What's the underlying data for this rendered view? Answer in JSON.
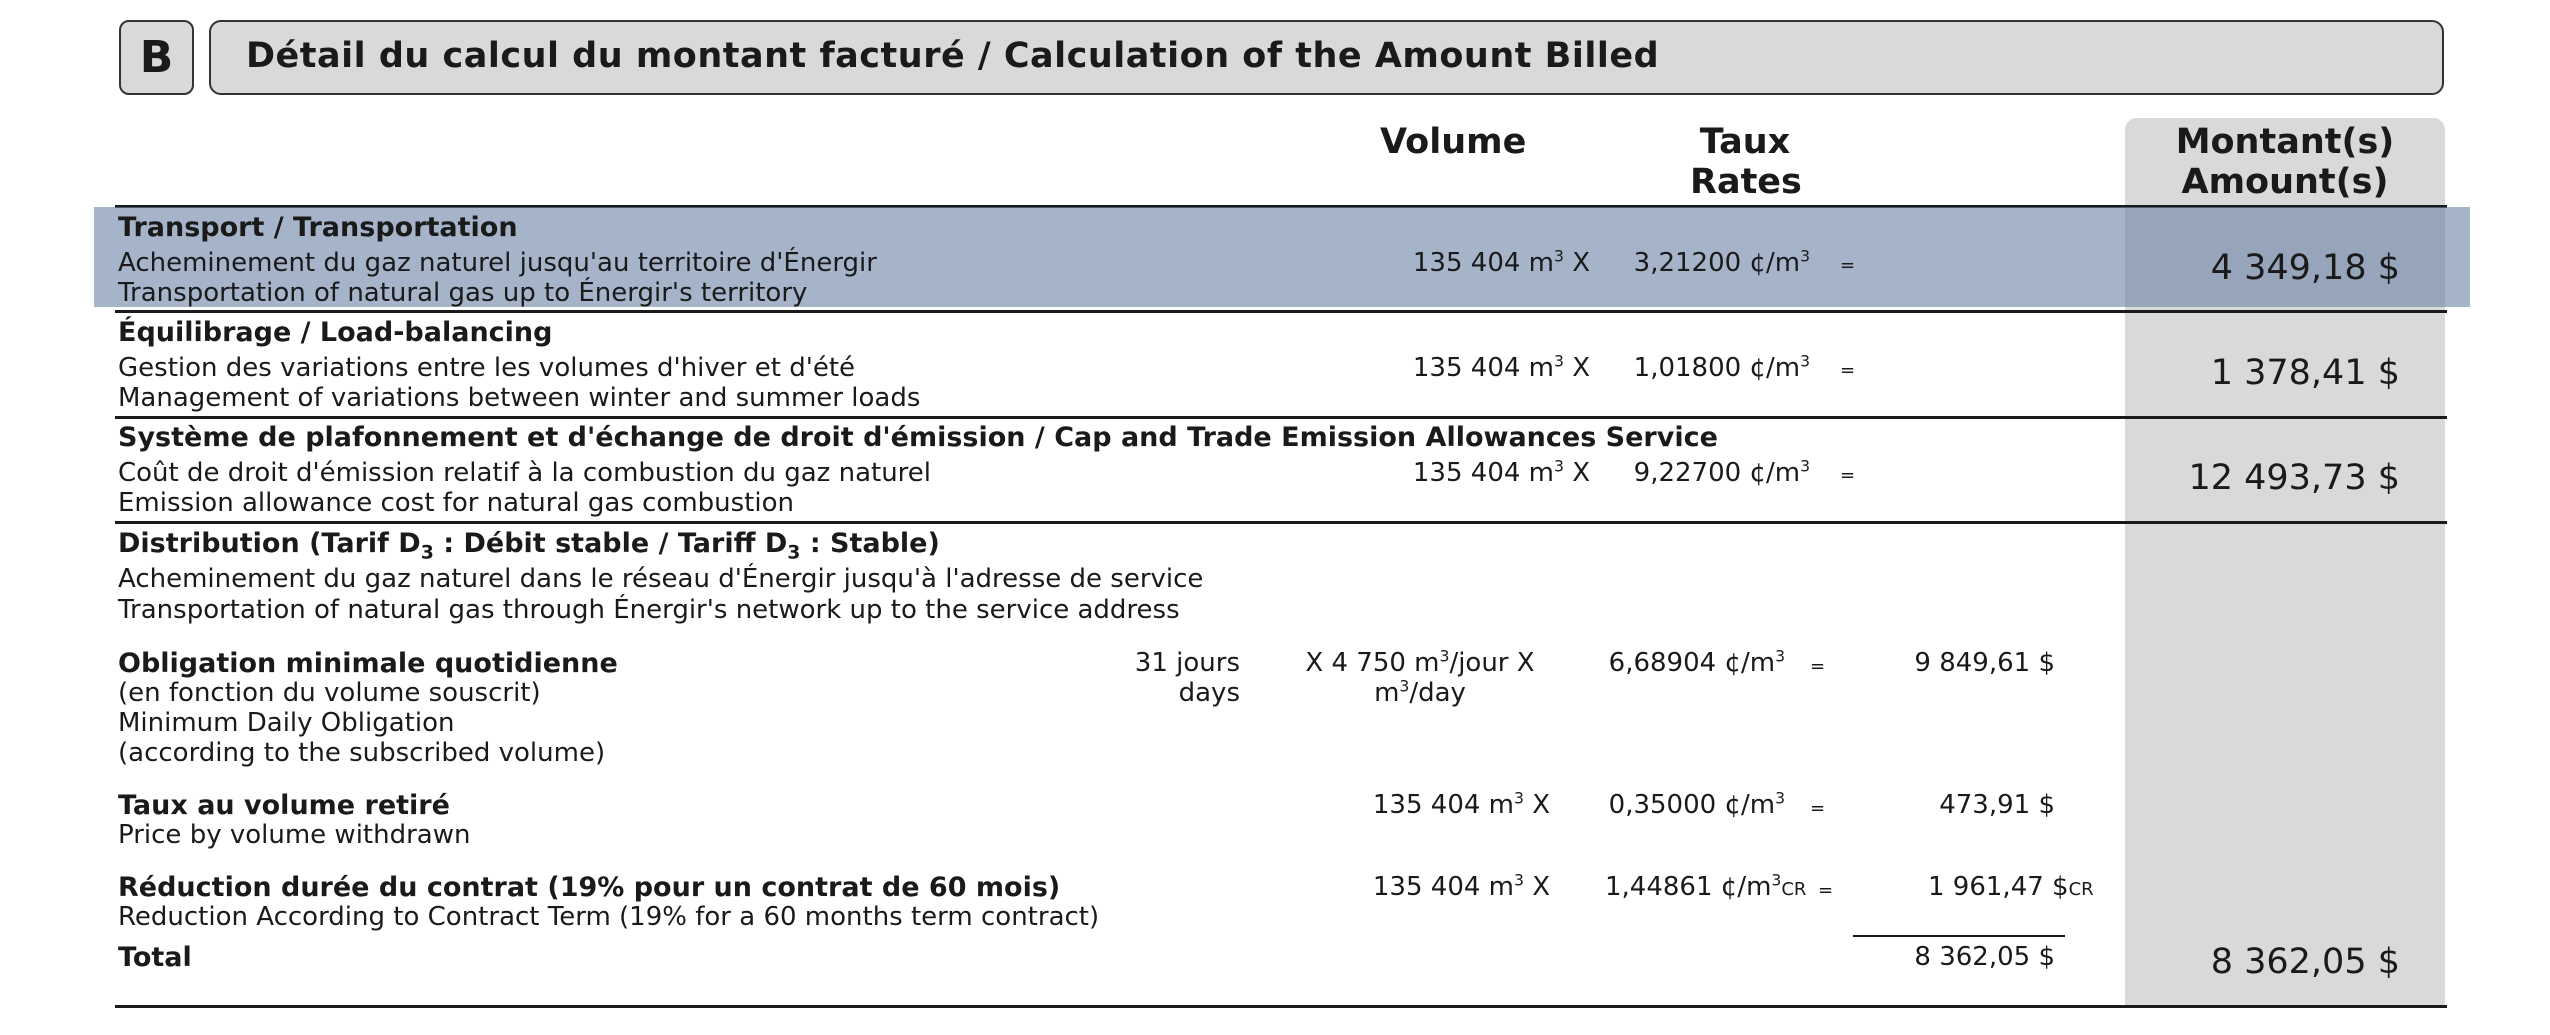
{
  "section_letter": "B",
  "title": "Détail du calcul du montant facturé / Calculation of the Amount Billed",
  "headers": {
    "volume": "Volume",
    "rates_fr": "Taux",
    "rates_en": "Rates",
    "amount_fr": "Montant(s)",
    "amount_en": "Amount(s)"
  },
  "transport": {
    "title": "Transport / Transportation",
    "line1": "Acheminement du gaz naturel jusqu'au territoire d'Énergir",
    "line2": "Transportation of natural gas up to Énergir's territory",
    "volume": "135 404 m",
    "volume_unit_sup": "3",
    "mult": "X",
    "rate": "3,21200 ¢/m",
    "rate_sup": "3",
    "eq": "=",
    "amount": "4 349,18 $"
  },
  "balancing": {
    "title": "Équilibrage / Load-balancing",
    "line1": "Gestion des variations entre les volumes d'hiver et d'été",
    "line2": "Management of variations between winter and summer loads",
    "volume": "135 404 m",
    "volume_unit_sup": "3",
    "mult": "X",
    "rate": "1,01800 ¢/m",
    "rate_sup": "3",
    "eq": "=",
    "amount": "1 378,41 $"
  },
  "capandtrade": {
    "title": "Système de plafonnement et d'échange de droit d'émission / Cap and Trade Emission Allowances Service",
    "line1": "Coût de droit d'émission relatif à la combustion du gaz naturel",
    "line2": "Emission allowance cost for natural gas combustion",
    "volume": "135 404 m",
    "volume_unit_sup": "3",
    "mult": "X",
    "rate": "9,22700 ¢/m",
    "rate_sup": "3",
    "eq": "=",
    "amount": "12 493,73 $"
  },
  "distribution": {
    "title_a": "Distribution (Tarif D",
    "title_sub1": "3",
    "title_b": " : Débit stable / Tariff D",
    "title_sub2": "3",
    "title_c": " : Stable)",
    "line1": "Acheminement du gaz naturel dans le réseau d'Énergir jusqu'à l'adresse de service",
    "line2": "Transportation of natural gas through Énergir's network up to the service address",
    "mdo": {
      "title": "Obligation minimale quotidienne",
      "line1": "(en fonction du volume souscrit)",
      "line2": "Minimum Daily Obligation",
      "line3": "(according to the subscribed volume)",
      "days_fr": "31 jours",
      "days_en": "days",
      "volume_a": "X 4 750 m",
      "volume_a_sup": "3",
      "volume_a_end": "/jour X",
      "volume_b": "m",
      "volume_b_sup": "3",
      "volume_b_end": "/day",
      "rate": "6,68904 ¢/m",
      "rate_sup": "3",
      "eq": "=",
      "subtotal": "9 849,61 $"
    },
    "volume_rate": {
      "title": "Taux au volume retiré",
      "line1": "Price by volume withdrawn",
      "volume": "135 404 m",
      "volume_unit_sup": "3",
      "mult": "X",
      "rate": "0,35000 ¢/m",
      "rate_sup": "3",
      "eq": "=",
      "subtotal": "473,91 $"
    },
    "reduction": {
      "title": "Réduction durée du contrat (19% pour un contrat de 60 mois)",
      "line1": "Reduction According to Contract Term (19% for a 60 months term contract)",
      "volume": "135 404 m",
      "volume_unit_sup": "3",
      "mult": "X",
      "rate": "1,44861 ¢/m",
      "rate_sup": "3",
      "rate_cr": "CR",
      "eq": "=",
      "subtotal": "1 961,47 $",
      "subtotal_cr": "CR"
    },
    "total_label": "Total",
    "total_subtotal": "8 362,05 $",
    "total_amount": "8 362,05 $"
  }
}
